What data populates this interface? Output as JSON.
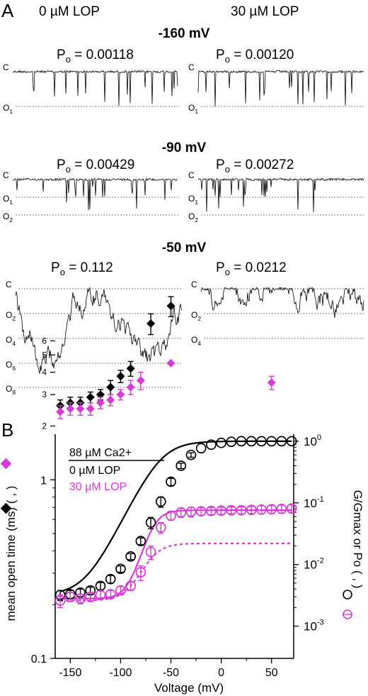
{
  "panel_a": {
    "label": "A",
    "column_left": "0 µM LOP",
    "column_right": "30 µM LOP",
    "rows": [
      {
        "voltage": "-160 mV",
        "left": {
          "po": "0.00118",
          "levels": [
            "C",
            "O1"
          ],
          "open_prob": 0.00118
        },
        "right": {
          "po": "0.00120",
          "levels": [
            "C",
            "O1"
          ],
          "open_prob": 0.0012
        }
      },
      {
        "voltage": "-90 mV",
        "left": {
          "po": "0.00429",
          "levels": [
            "C",
            "O1",
            "O2"
          ],
          "open_prob": 0.00429
        },
        "right": {
          "po": "0.00272",
          "levels": [
            "C",
            "O1",
            "O2"
          ],
          "open_prob": 0.00272
        }
      },
      {
        "voltage": "-50 mV",
        "left": {
          "po": "0.112",
          "levels": [
            "C",
            "O2",
            "O4",
            "O6",
            "O8"
          ],
          "open_prob": 0.112
        },
        "right": {
          "po": "0.0212",
          "levels": [
            "C",
            "O2",
            "O4"
          ],
          "open_prob": 0.0212
        }
      }
    ],
    "po_prefix": "P",
    "po_subscript": "o",
    "po_equals": " = "
  },
  "panel_b": {
    "label": "B"
  },
  "chart_data": {
    "type": "scatter",
    "xlabel": "Voltage (mV)",
    "ylabel_left": "mean open time (ms) (  ,  )",
    "ylabel_right": "G/Gmax or Po (  ,  )",
    "xlim": [
      -165,
      72
    ],
    "ylim_left": [
      0.1,
      1.8
    ],
    "ylim_right": [
      0.0003,
      1.3
    ],
    "x_ticks": [
      -150,
      -100,
      -50,
      0,
      50
    ],
    "y_left_ticks": [
      0.1,
      1,
      2,
      3,
      4,
      5,
      6
    ],
    "y_left_tick_labels": [
      "0.1",
      "1",
      "2",
      "3",
      "4",
      "5",
      "6"
    ],
    "y_right_ticks": [
      1,
      0.1,
      0.01,
      0.001
    ],
    "y_right_tick_labels": [
      "10^0",
      "10^-1",
      "10^-2",
      "10^-3"
    ],
    "legend": {
      "title": "88 µM Ca2+",
      "entries": [
        "0 µM LOP",
        "30 µM LOP"
      ]
    },
    "colors": {
      "control": "#000000",
      "lop": "#d63bd6"
    },
    "series": [
      {
        "name": "0 µM LOP",
        "kind": "G/Gmax or Po (open circles, right axis)",
        "x": [
          -160,
          -150,
          -140,
          -130,
          -120,
          -110,
          -100,
          -90,
          -80,
          -70,
          -60,
          -50,
          -40,
          -30,
          -20,
          -10,
          0,
          10,
          20,
          30,
          40,
          50,
          60,
          70
        ],
        "y": [
          0.0032,
          0.0033,
          0.0035,
          0.0038,
          0.0045,
          0.0058,
          0.0085,
          0.0135,
          0.024,
          0.048,
          0.105,
          0.22,
          0.4,
          0.6,
          0.77,
          0.88,
          0.94,
          0.98,
          1.0,
          1.0,
          1.0,
          1.0,
          1.0,
          1.0
        ],
        "err": [
          0.0006,
          0.0005,
          0.0005,
          0.0005,
          0.0006,
          0.0008,
          0.001,
          0.0015,
          0.003,
          0.01,
          0.02,
          0.03,
          0.04,
          0.05,
          0,
          0,
          0,
          0,
          0,
          0,
          0,
          0,
          0,
          0
        ]
      },
      {
        "name": "30 µM LOP",
        "kind": "G/Gmax or Po (open circles, right axis)",
        "x": [
          -160,
          -150,
          -140,
          -130,
          -120,
          -110,
          -100,
          -90,
          -80,
          -70,
          -60,
          -50,
          -40,
          -30,
          -20,
          -10,
          0,
          10,
          20,
          30,
          40,
          50,
          60,
          70
        ],
        "y": [
          0.0026,
          0.003,
          0.0028,
          0.003,
          0.0032,
          0.0033,
          0.0038,
          0.0045,
          0.0075,
          0.016,
          0.04,
          0.062,
          0.07,
          0.072,
          0.073,
          0.074,
          0.075,
          0.076,
          0.076,
          0.077,
          0.078,
          0.079,
          0.08,
          0.081
        ],
        "err": [
          0.0006,
          0.0005,
          0.0005,
          0.0005,
          0.0005,
          0.0005,
          0.0006,
          0.0007,
          0.002,
          0.004,
          0.008,
          0.01,
          0.012,
          0.013,
          0.01,
          0.01,
          0.01,
          0.01,
          0.01,
          0.01,
          0.012,
          0.012,
          0.012,
          0.012
        ]
      },
      {
        "name": "0 µM LOP",
        "kind": "mean open time (filled diamonds, left axis)",
        "x": [
          -160,
          -150,
          -140,
          -130,
          -120,
          -110,
          -100,
          -90,
          -80,
          -70,
          -50
        ],
        "y": [
          2.6,
          2.7,
          2.7,
          2.9,
          3.0,
          3.3,
          3.8,
          4.2,
          null,
          7.5,
          9.4
        ],
        "err": [
          0.2,
          0.2,
          0.2,
          0.2,
          0.2,
          0.3,
          0.3,
          0.4,
          null,
          1.0,
          1.2
        ]
      },
      {
        "name": "30 µM LOP",
        "kind": "mean open time (filled diamonds, left axis)",
        "x": [
          -160,
          -150,
          -140,
          -130,
          -120,
          -110,
          -100,
          -90,
          -80,
          -50,
          50
        ],
        "y": [
          2.4,
          2.5,
          2.5,
          2.5,
          2.7,
          2.8,
          3.0,
          3.3,
          3.6,
          4.5,
          3.5
        ],
        "err": [
          0.2,
          0.2,
          0.2,
          0.2,
          0.2,
          0.2,
          0.2,
          0.3,
          0.4,
          0,
          0.3
        ]
      }
    ]
  }
}
